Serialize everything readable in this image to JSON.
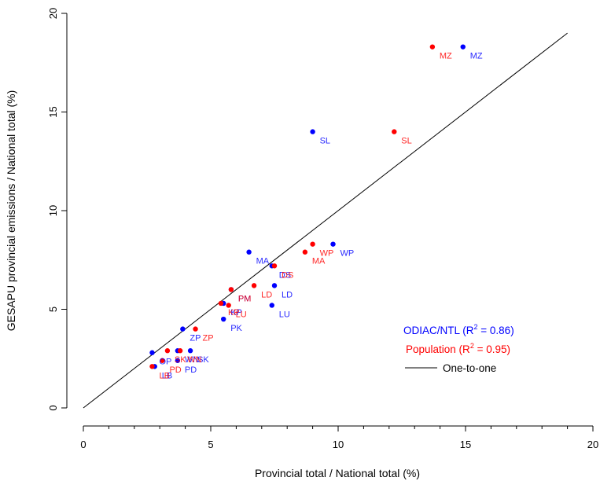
{
  "chart_data": {
    "type": "scatter",
    "xlabel": "Provincial total / National total (%)",
    "ylabel": "GESAPU provincial emissions / National total (%)",
    "xlim": [
      0,
      20
    ],
    "ylim": [
      0,
      20
    ],
    "xticks": [
      "0",
      "5",
      "10",
      "15",
      "20"
    ],
    "yticks": [
      "0",
      "5",
      "10",
      "15",
      "20"
    ],
    "grid": false,
    "legend_position": "bottom-right",
    "reference_line": {
      "name": "One-to-one",
      "color": "#000000",
      "x": [
        0,
        19
      ],
      "y": [
        0,
        19
      ]
    },
    "series": [
      {
        "name": "ODIAC/NTL",
        "r2": "0.86",
        "color": "#0000ff",
        "points": [
          {
            "label": "MZ",
            "x": 14.9,
            "y": 18.3
          },
          {
            "label": "SL",
            "x": 9.0,
            "y": 14.0
          },
          {
            "label": "WP",
            "x": 9.8,
            "y": 8.3
          },
          {
            "label": "MA",
            "x": 6.5,
            "y": 7.9
          },
          {
            "label": "DS",
            "x": 7.4,
            "y": 7.2
          },
          {
            "label": "LD",
            "x": 7.5,
            "y": 6.2
          },
          {
            "label": "LU",
            "x": 7.4,
            "y": 5.2
          },
          {
            "label": "KP",
            "x": 5.5,
            "y": 5.3
          },
          {
            "label": "PM",
            "x": 5.8,
            "y": 6.0
          },
          {
            "label": "PK",
            "x": 5.5,
            "y": 4.5
          },
          {
            "label": "ZP",
            "x": 3.9,
            "y": 4.0
          },
          {
            "label": "OP",
            "x": 2.7,
            "y": 2.8
          },
          {
            "label": "SK",
            "x": 4.2,
            "y": 2.9
          },
          {
            "label": "WN",
            "x": 3.7,
            "y": 2.9
          },
          {
            "label": "PD",
            "x": 3.7,
            "y": 2.4
          },
          {
            "label": "LB",
            "x": 2.8,
            "y": 2.1
          }
        ]
      },
      {
        "name": "Population",
        "r2": "0.95",
        "color": "#ff0000",
        "points": [
          {
            "label": "MZ",
            "x": 13.7,
            "y": 18.3
          },
          {
            "label": "SL",
            "x": 12.2,
            "y": 14.0
          },
          {
            "label": "WP",
            "x": 9.0,
            "y": 8.3
          },
          {
            "label": "MA",
            "x": 8.7,
            "y": 7.9
          },
          {
            "label": "DS",
            "x": 7.5,
            "y": 7.2
          },
          {
            "label": "LD",
            "x": 6.7,
            "y": 6.2
          },
          {
            "label": "LU",
            "x": 5.7,
            "y": 5.2
          },
          {
            "label": "KP",
            "x": 5.4,
            "y": 5.3
          },
          {
            "label": "PM",
            "x": 5.8,
            "y": 6.0
          },
          {
            "label": "ZP",
            "x": 4.4,
            "y": 4.0
          },
          {
            "label": "SK",
            "x": 3.3,
            "y": 2.9
          },
          {
            "label": "WN",
            "x": 3.8,
            "y": 2.9
          },
          {
            "label": "PD",
            "x": 3.1,
            "y": 2.4
          },
          {
            "label": "LB",
            "x": 2.7,
            "y": 2.1
          }
        ]
      }
    ]
  },
  "legend": {
    "odiac_prefix": "ODIAC/NTL (R",
    "population_prefix": "Population (R",
    "r_superscript": "2",
    "odiac_suffix": " = 0.86)",
    "population_suffix": " = 0.95)",
    "one_to_one": "One-to-one"
  }
}
